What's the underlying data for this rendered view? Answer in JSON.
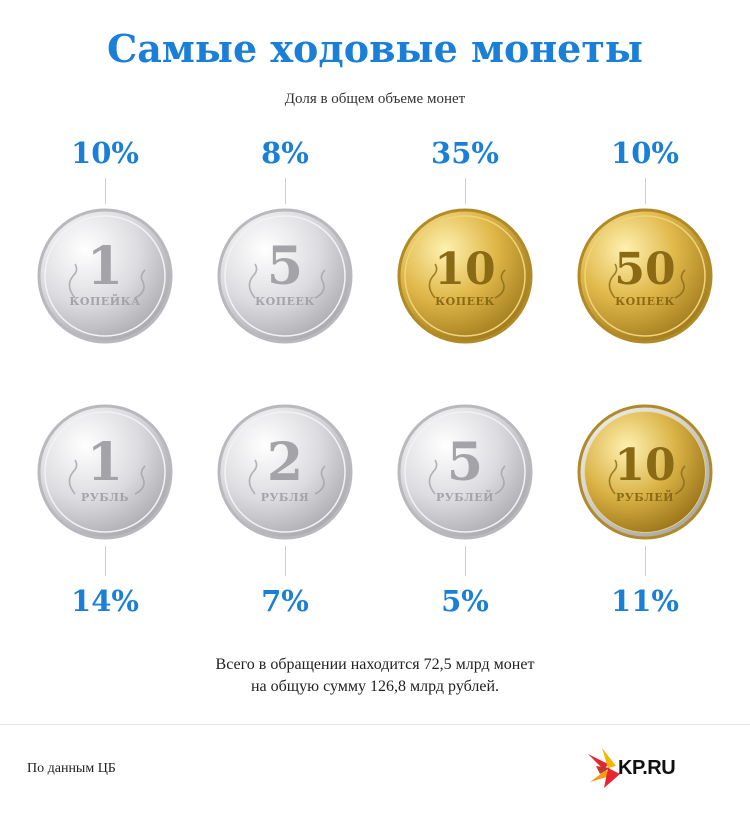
{
  "title": "Самые ходовые монеты",
  "subtitle": "Доля в общем объеме монет",
  "coins": [
    {
      "name": "1 копейка",
      "share": "10%",
      "denom": "1",
      "unit": "КОПЕЙКА",
      "metal": "silver"
    },
    {
      "name": "5 копеек",
      "share": "8%",
      "denom": "5",
      "unit": "КОПЕЕК",
      "metal": "silver"
    },
    {
      "name": "10 копеек",
      "share": "35%",
      "denom": "10",
      "unit": "КОПЕЕК",
      "metal": "gold"
    },
    {
      "name": "50 копеек",
      "share": "10%",
      "denom": "50",
      "unit": "КОПЕЕК",
      "metal": "gold"
    },
    {
      "name": "1 рубль",
      "share": "14%",
      "denom": "1",
      "unit": "РУБЛЬ",
      "metal": "silver"
    },
    {
      "name": "2 рубля",
      "share": "7%",
      "denom": "2",
      "unit": "РУБЛЯ",
      "metal": "silver"
    },
    {
      "name": "5 рублей",
      "share": "5%",
      "denom": "5",
      "unit": "РУБЛЕЙ",
      "metal": "silver"
    },
    {
      "name": "10 рублей",
      "share": "11%",
      "denom": "10",
      "unit": "РУБЛЕЙ",
      "metal": "gold-ring"
    }
  ],
  "total_line1": "Всего в обращении находится 72,5 млрд монет",
  "total_line2": "на общую сумму 126,8 млрд рублей.",
  "source": "По данным ЦБ",
  "logo": "KP.RU",
  "colors": {
    "accent": "#1a7fd6",
    "silver": "#d9d9dc",
    "gold": "#d2a93a"
  }
}
